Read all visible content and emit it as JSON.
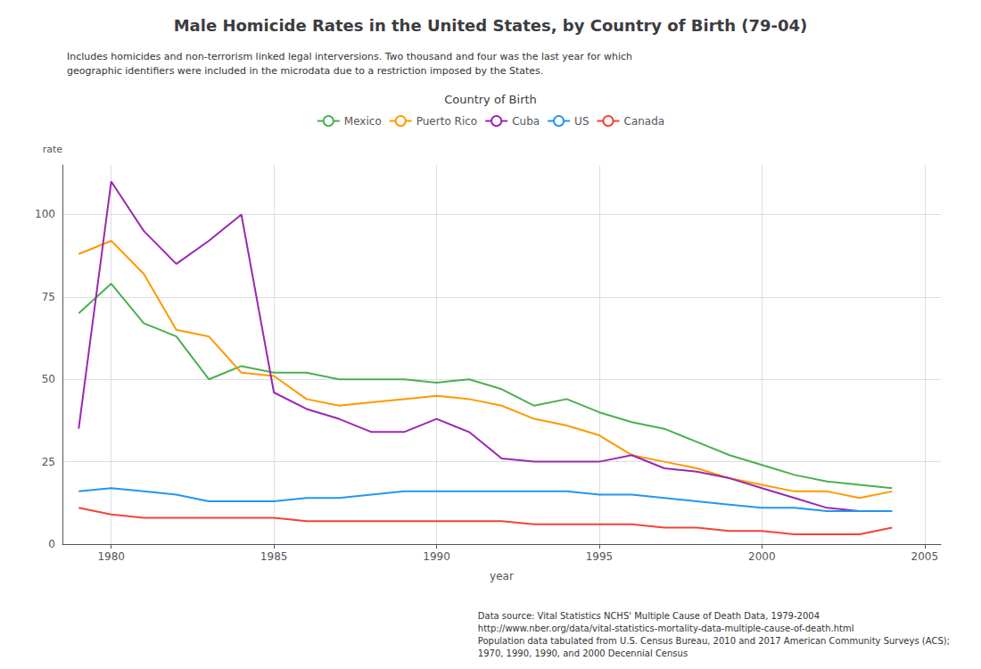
{
  "chart_data": {
    "type": "line",
    "title": "Male Homicide Rates in the United States, by Country of Birth (79-04)",
    "subtitle": "Includes homicides and non-terrorism linked legal interversions. Two thousand and four was the last year for which\ngeographic identifiers were included in the microdata due to a restriction imposed by the States.",
    "xlabel": "year",
    "ylabel": "rate",
    "footnote": "Data source: Vital Statistics NCHS' Multiple Cause of Death Data, 1979-2004\nhttp://www.nber.org/data/vital-statistics-mortality-data-multiple-cause-of-death.html\nPopulation data tabulated from U.S. Census Bureau, 2010 and 2017 American Community Surveys (ACS);\n1970, 1990, 1990, and 2000 Decennial Census",
    "legend_title": "Country of Birth",
    "legend": "top",
    "grid": true,
    "x": [
      1979,
      1980,
      1981,
      1982,
      1983,
      1984,
      1985,
      1986,
      1987,
      1988,
      1989,
      1990,
      1991,
      1992,
      1993,
      1994,
      1995,
      1996,
      1997,
      1998,
      1999,
      2000,
      2001,
      2002,
      2003,
      2004
    ],
    "series": [
      {
        "name": "Mexico",
        "color": "#4caf50",
        "values": [
          70,
          79,
          67,
          63,
          50,
          54,
          52,
          52,
          50,
          50,
          50,
          49,
          50,
          47,
          42,
          44,
          40,
          37,
          35,
          31,
          27,
          24,
          21,
          19,
          18,
          17
        ]
      },
      {
        "name": "Puerto Rico",
        "color": "#ff9800",
        "values": [
          88,
          92,
          82,
          65,
          63,
          52,
          51,
          44,
          42,
          43,
          44,
          45,
          44,
          42,
          38,
          36,
          33,
          27,
          25,
          23,
          20,
          18,
          16,
          16,
          14,
          16
        ]
      },
      {
        "name": "Cuba",
        "color": "#9c27b0",
        "values": [
          35,
          110,
          95,
          85,
          92,
          100,
          46,
          41,
          38,
          34,
          34,
          38,
          34,
          26,
          25,
          25,
          25,
          27,
          23,
          22,
          20,
          17,
          14,
          11,
          10,
          10
        ]
      },
      {
        "name": "US",
        "color": "#2196f3",
        "values": [
          16,
          17,
          16,
          15,
          13,
          13,
          13,
          14,
          14,
          15,
          16,
          16,
          16,
          16,
          16,
          16,
          15,
          15,
          14,
          13,
          12,
          11,
          11,
          10,
          10,
          10
        ]
      },
      {
        "name": "Canada",
        "color": "#f44336",
        "values": [
          11,
          9,
          8,
          8,
          8,
          8,
          8,
          7,
          7,
          7,
          7,
          7,
          7,
          7,
          6,
          6,
          6,
          6,
          5,
          5,
          4,
          4,
          3,
          3,
          3,
          5
        ]
      }
    ],
    "xlim": [
      1978.5,
      2005.5
    ],
    "xticks": [
      1980,
      1985,
      1990,
      1995,
      2000,
      2005
    ],
    "ylim": [
      0,
      115
    ],
    "yticks": [
      0,
      25,
      50,
      75,
      100
    ]
  }
}
